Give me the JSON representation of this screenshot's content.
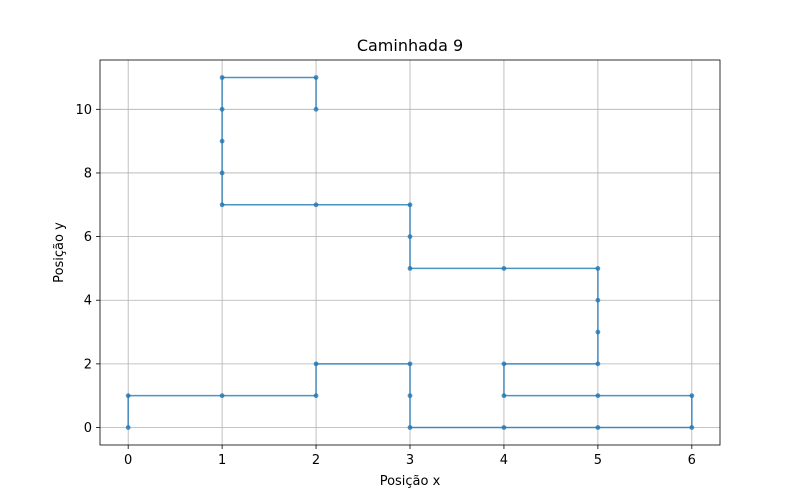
{
  "chart_data": {
    "type": "line",
    "title": "Caminhada 9",
    "xlabel": "Posição x",
    "ylabel": "Posição y",
    "xlim": [
      -0.3,
      6.3
    ],
    "ylim": [
      -0.55,
      11.55
    ],
    "xticks": [
      0,
      1,
      2,
      3,
      4,
      5,
      6
    ],
    "yticks": [
      0,
      2,
      4,
      6,
      8,
      10
    ],
    "grid": true,
    "series": [
      {
        "color": "#1f77b4",
        "marker": "circle",
        "x": [
          0,
          0,
          1,
          2,
          2,
          3,
          3,
          3,
          4,
          5,
          6,
          6,
          5,
          4,
          4,
          5,
          5,
          5,
          5,
          4,
          3,
          3,
          3,
          2,
          1,
          1,
          1,
          1,
          1,
          2,
          2
        ],
        "y": [
          0,
          1,
          1,
          1,
          2,
          2,
          1,
          0,
          0,
          0,
          0,
          1,
          1,
          1,
          2,
          2,
          3,
          4,
          5,
          5,
          5,
          6,
          7,
          7,
          7,
          8,
          9,
          10,
          11,
          11,
          10
        ]
      }
    ]
  }
}
